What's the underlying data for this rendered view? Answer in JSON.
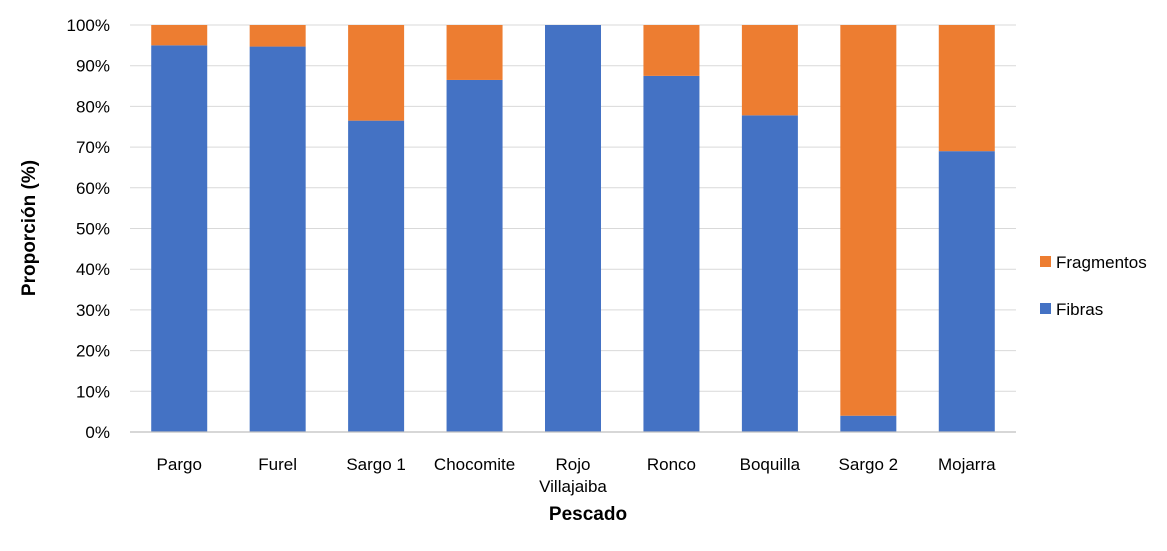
{
  "chart_data": {
    "type": "bar",
    "stacked": true,
    "categories": [
      "Pargo",
      "Furel",
      "Sargo 1",
      "Chocomite",
      "Rojo Villajaiba",
      "Ronco",
      "Boquilla",
      "Sargo 2",
      "Mojarra"
    ],
    "category_lines": [
      [
        "Pargo"
      ],
      [
        "Furel"
      ],
      [
        "Sargo 1"
      ],
      [
        "Chocomite"
      ],
      [
        "Rojo",
        "Villajaiba"
      ],
      [
        "Ronco"
      ],
      [
        "Boquilla"
      ],
      [
        "Sargo 2"
      ],
      [
        "Mojarra"
      ]
    ],
    "series": [
      {
        "name": "Fibras",
        "color": "#4472C4",
        "values": [
          95,
          94.7,
          76.5,
          86.5,
          100,
          87.5,
          77.8,
          4,
          69
        ]
      },
      {
        "name": "Fragmentos",
        "color": "#ED7D31",
        "values": [
          5,
          5.3,
          23.5,
          13.5,
          0,
          12.5,
          22.2,
          96,
          31
        ]
      }
    ],
    "xlabel": "Pescado",
    "ylabel": "Proporción (%)",
    "ylim": [
      0,
      100
    ],
    "y_ticks": [
      0,
      10,
      20,
      30,
      40,
      50,
      60,
      70,
      80,
      90,
      100
    ],
    "y_tick_labels": [
      "0%",
      "10%",
      "20%",
      "30%",
      "40%",
      "50%",
      "60%",
      "70%",
      "80%",
      "90%",
      "100%"
    ],
    "grid": true,
    "legend_position": "right",
    "legend_order": [
      "Fragmentos",
      "Fibras"
    ]
  }
}
